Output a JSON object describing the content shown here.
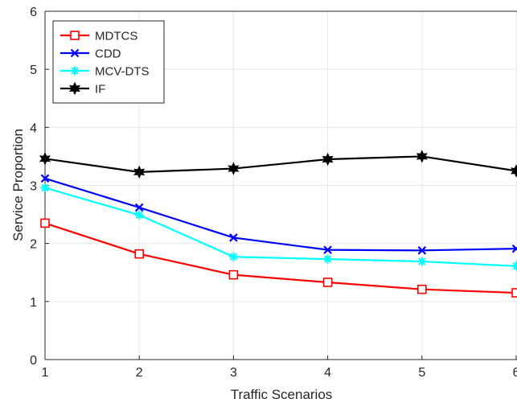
{
  "chart_data": {
    "type": "line",
    "title": "",
    "xlabel": "Traffic Scenarios",
    "ylabel": "Service Proportion",
    "x": [
      1,
      2,
      3,
      4,
      5,
      6
    ],
    "xticks": [
      "1",
      "2",
      "3",
      "4",
      "5",
      "6"
    ],
    "yticks": [
      "0",
      "1",
      "2",
      "3",
      "4",
      "5",
      "6"
    ],
    "xlim": [
      1,
      6
    ],
    "ylim": [
      0,
      6
    ],
    "grid": true,
    "legend_position": "top-left",
    "series": [
      {
        "name": "MDTCS",
        "color": "#ff0000",
        "marker": "square",
        "values": [
          2.35,
          1.82,
          1.46,
          1.33,
          1.21,
          1.15
        ]
      },
      {
        "name": "CDD",
        "color": "#0000ff",
        "marker": "x",
        "values": [
          3.12,
          2.62,
          2.1,
          1.89,
          1.88,
          1.91
        ]
      },
      {
        "name": "MCV-DTS",
        "color": "#00ffff",
        "marker": "asterisk",
        "values": [
          2.96,
          2.49,
          1.77,
          1.73,
          1.69,
          1.61
        ]
      },
      {
        "name": "IF",
        "color": "#000000",
        "marker": "hexagram",
        "values": [
          3.46,
          3.23,
          3.29,
          3.45,
          3.5,
          3.25
        ]
      }
    ]
  }
}
